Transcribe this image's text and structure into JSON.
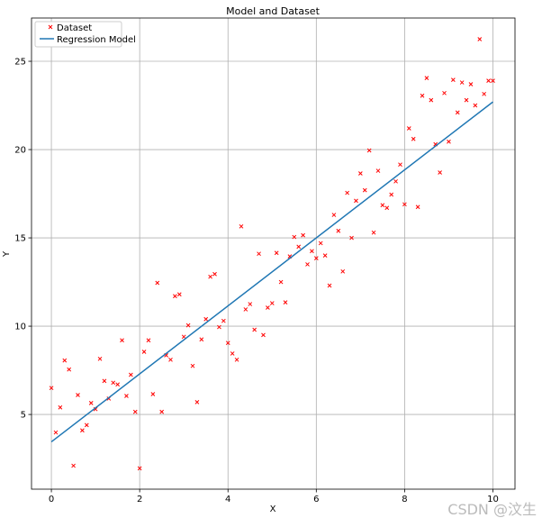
{
  "chart_data": {
    "type": "scatter",
    "title": "Model and Dataset",
    "xlabel": "X",
    "ylabel": "Y",
    "xlim": [
      -0.45,
      10.5
    ],
    "ylim": [
      0.77,
      27.45
    ],
    "xticks": [
      0,
      2,
      4,
      6,
      8,
      10
    ],
    "yticks": [
      5,
      10,
      15,
      20,
      25
    ],
    "grid": true,
    "legend_position": "top-left",
    "series": [
      {
        "name": "Dataset",
        "kind": "scatter",
        "marker": "x",
        "color": "#ff0000",
        "x": [
          0,
          0.1,
          0.2,
          0.3,
          0.4,
          0.5,
          0.6,
          0.7,
          0.8,
          0.9,
          1.0,
          1.1,
          1.2,
          1.3,
          1.4,
          1.5,
          1.6,
          1.7,
          1.8,
          1.9,
          2.0,
          2.1,
          2.2,
          2.3,
          2.4,
          2.5,
          2.6,
          2.7,
          2.8,
          2.9,
          3.0,
          3.1,
          3.2,
          3.3,
          3.4,
          3.5,
          3.6,
          3.7,
          3.8,
          3.9,
          4.0,
          4.1,
          4.2,
          4.3,
          4.4,
          4.5,
          4.6,
          4.7,
          4.8,
          4.9,
          5.0,
          5.1,
          5.2,
          5.3,
          5.4,
          5.5,
          5.6,
          5.7,
          5.8,
          5.9,
          6.0,
          6.1,
          6.2,
          6.3,
          6.4,
          6.5,
          6.6,
          6.7,
          6.8,
          6.9,
          7.0,
          7.1,
          7.2,
          7.3,
          7.4,
          7.5,
          7.6,
          7.7,
          7.8,
          7.9,
          8.0,
          8.1,
          8.2,
          8.3,
          8.4,
          8.5,
          8.6,
          8.7,
          8.8,
          8.9,
          9.0,
          9.1,
          9.2,
          9.3,
          9.4,
          9.5,
          9.6,
          9.7,
          9.8,
          9.9,
          10.0
        ],
        "y": [
          6.5,
          3.98,
          5.4,
          8.06,
          7.55,
          2.1,
          6.1,
          4.1,
          4.4,
          5.65,
          5.3,
          8.15,
          6.9,
          5.9,
          6.8,
          6.7,
          9.2,
          6.05,
          7.25,
          5.15,
          1.95,
          8.55,
          9.2,
          6.15,
          12.45,
          5.15,
          8.35,
          8.1,
          11.7,
          11.8,
          9.4,
          10.05,
          7.75,
          5.7,
          9.25,
          10.4,
          12.8,
          12.95,
          9.95,
          10.3,
          9.05,
          8.45,
          8.1,
          15.65,
          10.95,
          11.25,
          9.8,
          14.1,
          9.5,
          11.05,
          11.3,
          14.15,
          12.5,
          11.35,
          13.95,
          15.05,
          14.5,
          15.15,
          13.5,
          14.25,
          13.85,
          14.7,
          14.0,
          12.3,
          16.3,
          15.4,
          13.1,
          17.55,
          15.0,
          17.1,
          18.65,
          17.7,
          19.95,
          15.3,
          18.8,
          16.85,
          16.7,
          17.45,
          18.2,
          19.15,
          16.9,
          21.2,
          20.6,
          16.75,
          23.05,
          24.05,
          22.8,
          20.3,
          18.7,
          23.2,
          20.45,
          23.95,
          22.1,
          23.8,
          22.8,
          23.7,
          22.5,
          26.25,
          23.15,
          23.9,
          23.9
        ]
      },
      {
        "name": "Regression Model",
        "kind": "line",
        "color": "#1f77b4",
        "x": [
          0,
          10
        ],
        "y": [
          3.45,
          22.7
        ]
      }
    ]
  },
  "watermark": "CSDN @汶生"
}
